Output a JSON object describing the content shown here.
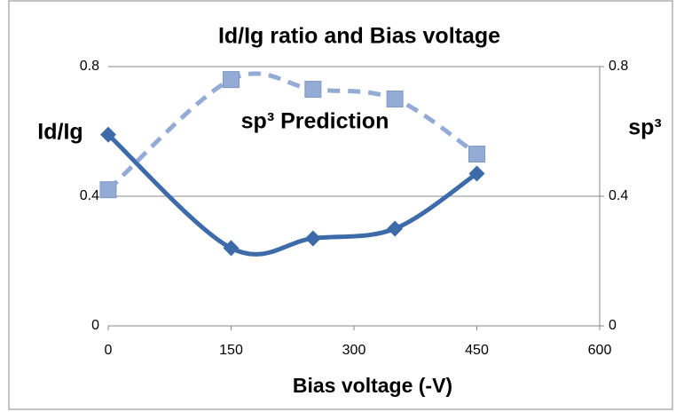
{
  "chart_data": {
    "type": "line",
    "title": "Id/Ig ratio and Bias voltage",
    "xlabel": "Bias voltage (-V)",
    "ylabel": "Id/Ig",
    "y2label": "sp³",
    "annotation": "sp³ Prediction",
    "x": [
      0,
      150,
      250,
      350,
      450
    ],
    "series": [
      {
        "color": "#3d6aa8",
        "marker": "diamond",
        "dashed": false,
        "values": [
          0.59,
          0.24,
          0.27,
          0.3,
          0.47
        ]
      },
      {
        "color": "#94abd6",
        "marker": "square",
        "dashed": true,
        "axis": "y2",
        "values": [
          0.42,
          0.76,
          0.73,
          0.7,
          0.53
        ]
      }
    ],
    "xlim": [
      0,
      600
    ],
    "xticks": [
      0,
      150,
      300,
      450,
      600
    ],
    "ylim": [
      0,
      0.8
    ],
    "yticks": [
      0,
      0.4,
      0.8
    ],
    "y2lim": [
      0,
      0.8
    ],
    "y2ticks": [
      0,
      0.4,
      0.8
    ],
    "grid": true
  }
}
